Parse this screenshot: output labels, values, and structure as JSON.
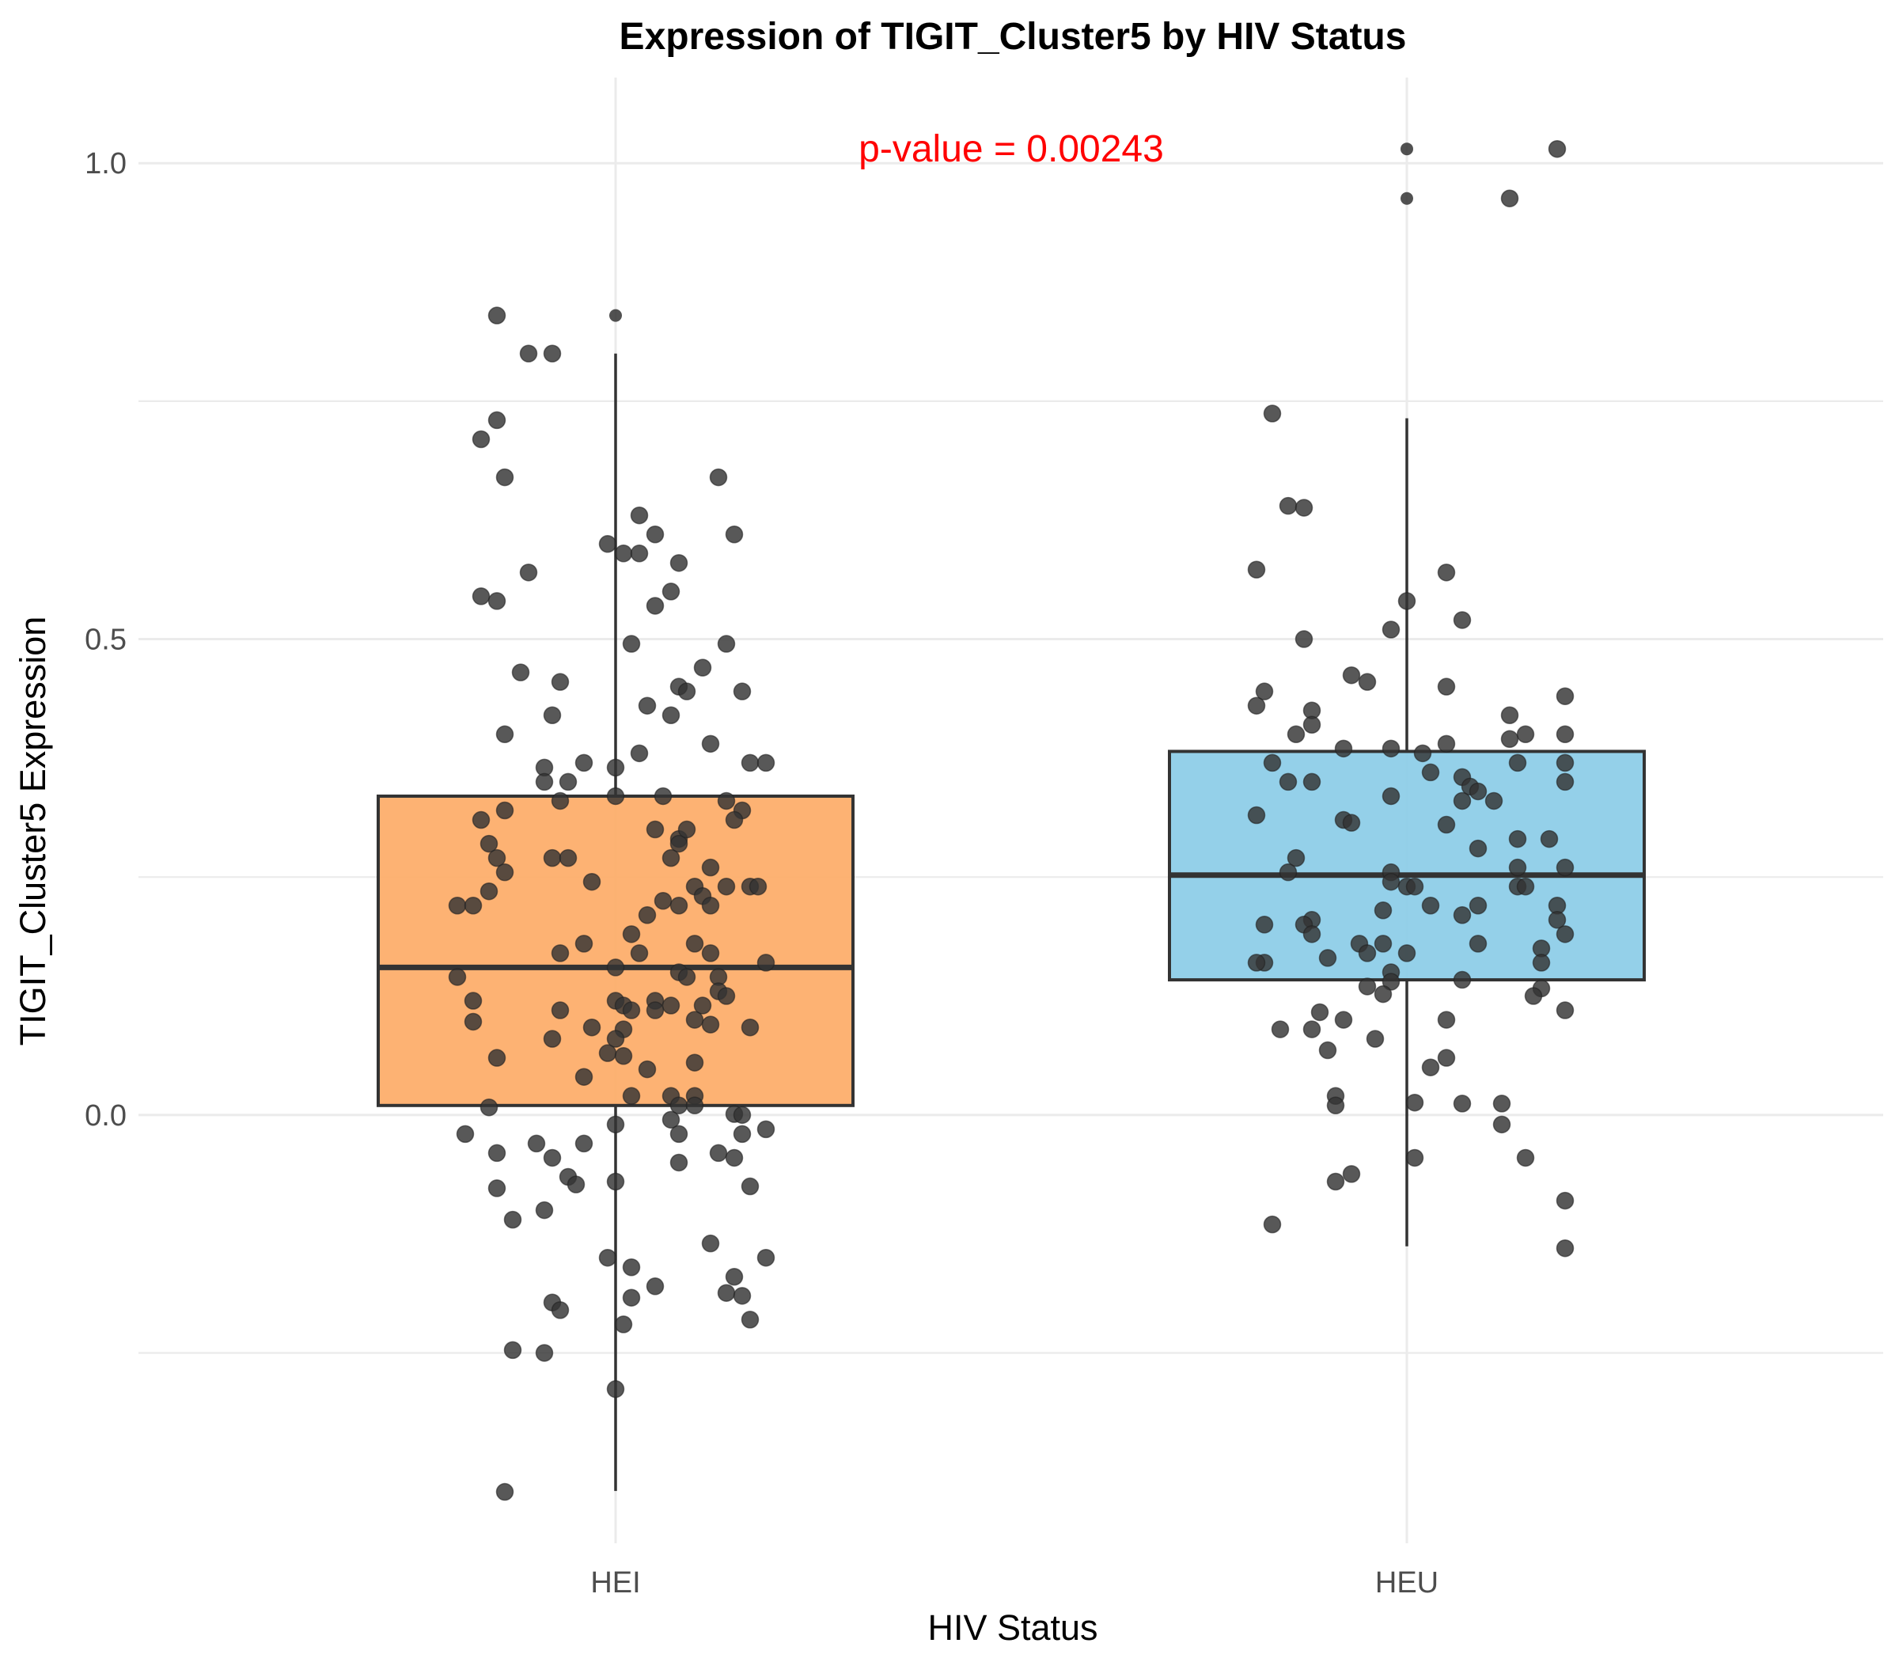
{
  "chart_data": {
    "type": "box",
    "title": "Expression of TIGIT_Cluster5 by HIV Status",
    "xlabel": "HIV Status",
    "ylabel": "TIGIT_Cluster5 Expression",
    "categories": [
      "HEI",
      "HEU"
    ],
    "yticks": [
      "0.0",
      "0.5",
      "1.0"
    ],
    "ylim": [
      -0.45,
      1.09
    ],
    "grid": true,
    "legend": "none",
    "annotation": {
      "text": "p-value = 0.00243",
      "color": "#ff0000"
    },
    "colors": {
      "HEI": "#fdae6b",
      "HEU": "#8ecde8",
      "points": "#333333"
    },
    "boxes": [
      {
        "group": "HEI",
        "min": -0.395,
        "q1": 0.01,
        "median": 0.155,
        "q3": 0.335,
        "max": 0.8,
        "outliers": [
          0.84
        ]
      },
      {
        "group": "HEU",
        "min": -0.138,
        "q1": 0.142,
        "median": 0.252,
        "q3": 0.382,
        "max": 0.732,
        "outliers": [
          1.015,
          0.963
        ]
      }
    ],
    "points": {
      "HEI": [
        [
          -0.15,
          0.84
        ],
        [
          -0.11,
          0.8
        ],
        [
          -0.08,
          0.8
        ],
        [
          -0.15,
          0.73
        ],
        [
          -0.17,
          0.71
        ],
        [
          -0.14,
          0.67
        ],
        [
          0.13,
          0.67
        ],
        [
          0.03,
          0.63
        ],
        [
          0.05,
          0.61
        ],
        [
          -0.01,
          0.6
        ],
        [
          0.15,
          0.61
        ],
        [
          0.01,
          0.59
        ],
        [
          0.03,
          0.59
        ],
        [
          0.08,
          0.58
        ],
        [
          -0.11,
          0.57
        ],
        [
          -0.17,
          0.545
        ],
        [
          -0.15,
          0.54
        ],
        [
          0.07,
          0.55
        ],
        [
          0.05,
          0.535
        ],
        [
          0.14,
          0.495
        ],
        [
          0.02,
          0.495
        ],
        [
          -0.12,
          0.465
        ],
        [
          0.11,
          0.47
        ],
        [
          -0.07,
          0.455
        ],
        [
          0.08,
          0.45
        ],
        [
          0.09,
          0.445
        ],
        [
          0.16,
          0.445
        ],
        [
          0.04,
          0.43
        ],
        [
          0.07,
          0.42
        ],
        [
          -0.08,
          0.42
        ],
        [
          -0.14,
          0.4
        ],
        [
          0.12,
          0.39
        ],
        [
          0.03,
          0.38
        ],
        [
          -0.04,
          0.37
        ],
        [
          -0.09,
          0.365
        ],
        [
          -0.06,
          0.35
        ],
        [
          -0.09,
          0.35
        ],
        [
          0.0,
          0.365
        ],
        [
          0.17,
          0.37
        ],
        [
          0.19,
          0.37
        ],
        [
          0.06,
          0.335
        ],
        [
          -0.07,
          0.33
        ],
        [
          0.0,
          0.335
        ],
        [
          0.14,
          0.33
        ],
        [
          -0.14,
          0.32
        ],
        [
          0.16,
          0.32
        ],
        [
          -0.17,
          0.31
        ],
        [
          0.15,
          0.31
        ],
        [
          -0.15,
          0.27
        ],
        [
          0.08,
          0.29
        ],
        [
          0.05,
          0.3
        ],
        [
          0.08,
          0.285
        ],
        [
          0.09,
          0.3
        ],
        [
          -0.16,
          0.285
        ],
        [
          -0.08,
          0.27
        ],
        [
          -0.06,
          0.27
        ],
        [
          0.07,
          0.27
        ],
        [
          0.12,
          0.26
        ],
        [
          -0.14,
          0.255
        ],
        [
          -0.16,
          0.235
        ],
        [
          -0.03,
          0.245
        ],
        [
          0.1,
          0.24
        ],
        [
          0.14,
          0.24
        ],
        [
          0.17,
          0.24
        ],
        [
          0.18,
          0.24
        ],
        [
          0.11,
          0.23
        ],
        [
          -0.2,
          0.22
        ],
        [
          -0.18,
          0.22
        ],
        [
          0.06,
          0.225
        ],
        [
          0.08,
          0.22
        ],
        [
          0.12,
          0.22
        ],
        [
          0.04,
          0.21
        ],
        [
          0.02,
          0.19
        ],
        [
          -0.04,
          0.18
        ],
        [
          0.1,
          0.18
        ],
        [
          0.12,
          0.17
        ],
        [
          0.03,
          0.17
        ],
        [
          -0.07,
          0.17
        ],
        [
          0.19,
          0.16
        ],
        [
          0.0,
          0.155
        ],
        [
          0.08,
          0.15
        ],
        [
          0.09,
          0.145
        ],
        [
          -0.2,
          0.145
        ],
        [
          0.13,
          0.145
        ],
        [
          0.13,
          0.13
        ],
        [
          0.14,
          0.125
        ],
        [
          0.05,
          0.12
        ],
        [
          0.0,
          0.12
        ],
        [
          0.01,
          0.115
        ],
        [
          0.02,
          0.11
        ],
        [
          0.07,
          0.115
        ],
        [
          0.11,
          0.115
        ],
        [
          -0.18,
          0.12
        ],
        [
          -0.07,
          0.11
        ],
        [
          0.05,
          0.11
        ],
        [
          -0.18,
          0.098
        ],
        [
          0.1,
          0.1
        ],
        [
          0.12,
          0.095
        ],
        [
          0.17,
          0.092
        ],
        [
          -0.03,
          0.092
        ],
        [
          0.01,
          0.09
        ],
        [
          0.0,
          0.08
        ],
        [
          -0.08,
          0.08
        ],
        [
          -0.01,
          0.065
        ],
        [
          0.01,
          0.062
        ],
        [
          -0.15,
          0.06
        ],
        [
          0.1,
          0.055
        ],
        [
          0.04,
          0.048
        ],
        [
          -0.04,
          0.04
        ],
        [
          0.02,
          0.02
        ],
        [
          0.07,
          0.02
        ],
        [
          0.1,
          0.02
        ],
        [
          0.08,
          0.01
        ],
        [
          0.1,
          0.01
        ],
        [
          -0.16,
          0.008
        ],
        [
          0.15,
          0.001
        ],
        [
          0.16,
          0.0
        ],
        [
          0.07,
          -0.005
        ],
        [
          0.0,
          -0.01
        ],
        [
          0.19,
          -0.015
        ],
        [
          0.16,
          -0.02
        ],
        [
          -0.19,
          -0.02
        ],
        [
          -0.1,
          -0.03
        ],
        [
          -0.04,
          -0.03
        ],
        [
          0.08,
          -0.02
        ],
        [
          -0.15,
          -0.04
        ],
        [
          -0.08,
          -0.045
        ],
        [
          0.13,
          -0.04
        ],
        [
          0.15,
          -0.045
        ],
        [
          0.08,
          -0.05
        ],
        [
          -0.06,
          -0.065
        ],
        [
          0.0,
          -0.07
        ],
        [
          -0.05,
          -0.073
        ],
        [
          -0.15,
          -0.077
        ],
        [
          0.17,
          -0.075
        ],
        [
          -0.09,
          -0.1
        ],
        [
          -0.13,
          -0.11
        ],
        [
          0.12,
          -0.135
        ],
        [
          -0.01,
          -0.15
        ],
        [
          0.02,
          -0.16
        ],
        [
          0.19,
          -0.15
        ],
        [
          0.15,
          -0.17
        ],
        [
          0.05,
          -0.18
        ],
        [
          0.14,
          -0.187
        ],
        [
          0.02,
          -0.192
        ],
        [
          0.16,
          -0.19
        ],
        [
          -0.08,
          -0.197
        ],
        [
          -0.07,
          -0.205
        ],
        [
          0.17,
          -0.215
        ],
        [
          0.01,
          -0.22
        ],
        [
          -0.13,
          -0.247
        ],
        [
          -0.09,
          -0.25
        ],
        [
          0.0,
          -0.288
        ],
        [
          -0.14,
          -0.396
        ]
      ],
      "HEU": [
        [
          0.19,
          1.015
        ],
        [
          0.13,
          0.963
        ],
        [
          -0.17,
          0.737
        ],
        [
          -0.15,
          0.64
        ],
        [
          -0.13,
          0.638
        ],
        [
          -0.19,
          0.573
        ],
        [
          0.05,
          0.57
        ],
        [
          0.0,
          0.54
        ],
        [
          0.07,
          0.52
        ],
        [
          -0.13,
          0.5
        ],
        [
          -0.02,
          0.51
        ],
        [
          -0.07,
          0.462
        ],
        [
          -0.05,
          0.455
        ],
        [
          0.05,
          0.45
        ],
        [
          -0.18,
          0.445
        ],
        [
          -0.19,
          0.43
        ],
        [
          0.2,
          0.44
        ],
        [
          -0.12,
          0.425
        ],
        [
          0.13,
          0.42
        ],
        [
          -0.12,
          0.41
        ],
        [
          -0.14,
          0.4
        ],
        [
          0.15,
          0.4
        ],
        [
          0.13,
          0.395
        ],
        [
          0.2,
          0.4
        ],
        [
          0.05,
          0.39
        ],
        [
          -0.08,
          0.385
        ],
        [
          -0.02,
          0.385
        ],
        [
          0.02,
          0.38
        ],
        [
          -0.17,
          0.37
        ],
        [
          0.14,
          0.37
        ],
        [
          0.2,
          0.37
        ],
        [
          0.03,
          0.36
        ],
        [
          0.07,
          0.355
        ],
        [
          0.2,
          0.35
        ],
        [
          -0.12,
          0.35
        ],
        [
          -0.15,
          0.35
        ],
        [
          0.08,
          0.345
        ],
        [
          0.09,
          0.34
        ],
        [
          0.07,
          0.33
        ],
        [
          0.11,
          0.33
        ],
        [
          -0.02,
          0.335
        ],
        [
          -0.19,
          0.315
        ],
        [
          -0.08,
          0.31
        ],
        [
          -0.07,
          0.307
        ],
        [
          0.05,
          0.305
        ],
        [
          0.14,
          0.29
        ],
        [
          0.18,
          0.29
        ],
        [
          0.09,
          0.28
        ],
        [
          -0.14,
          0.27
        ],
        [
          -0.15,
          0.255
        ],
        [
          -0.02,
          0.255
        ],
        [
          0.2,
          0.26
        ],
        [
          0.14,
          0.26
        ],
        [
          0.14,
          0.24
        ],
        [
          -0.02,
          0.245
        ],
        [
          -0.0,
          0.24
        ],
        [
          0.01,
          0.24
        ],
        [
          0.15,
          0.24
        ],
        [
          0.09,
          0.22
        ],
        [
          0.03,
          0.22
        ],
        [
          0.19,
          0.22
        ],
        [
          -0.03,
          0.215
        ],
        [
          0.07,
          0.21
        ],
        [
          0.19,
          0.205
        ],
        [
          -0.12,
          0.205
        ],
        [
          -0.13,
          0.2
        ],
        [
          -0.18,
          0.2
        ],
        [
          -0.12,
          0.19
        ],
        [
          0.2,
          0.19
        ],
        [
          -0.03,
          0.18
        ],
        [
          0.09,
          0.18
        ],
        [
          -0.06,
          0.18
        ],
        [
          0.17,
          0.175
        ],
        [
          -0.05,
          0.17
        ],
        [
          0.0,
          0.17
        ],
        [
          -0.1,
          0.165
        ],
        [
          0.17,
          0.16
        ],
        [
          -0.18,
          0.16
        ],
        [
          -0.19,
          0.16
        ],
        [
          -0.02,
          0.15
        ],
        [
          -0.02,
          0.14
        ],
        [
          0.07,
          0.142
        ],
        [
          -0.05,
          0.135
        ],
        [
          0.17,
          0.133
        ],
        [
          0.16,
          0.125
        ],
        [
          -0.03,
          0.127
        ],
        [
          0.2,
          0.11
        ],
        [
          -0.11,
          0.108
        ],
        [
          0.05,
          0.1
        ],
        [
          -0.08,
          0.1
        ],
        [
          -0.16,
          0.09
        ],
        [
          -0.12,
          0.09
        ],
        [
          -0.04,
          0.08
        ],
        [
          -0.1,
          0.068
        ],
        [
          0.05,
          0.06
        ],
        [
          0.03,
          0.05
        ],
        [
          -0.09,
          0.02
        ],
        [
          -0.09,
          0.01
        ],
        [
          0.01,
          0.013
        ],
        [
          0.07,
          0.012
        ],
        [
          0.12,
          0.012
        ],
        [
          0.12,
          -0.01
        ],
        [
          0.01,
          -0.045
        ],
        [
          0.15,
          -0.045
        ],
        [
          -0.07,
          -0.062
        ],
        [
          -0.09,
          -0.07
        ],
        [
          0.2,
          -0.09
        ],
        [
          -0.17,
          -0.115
        ],
        [
          0.2,
          -0.14
        ]
      ]
    }
  }
}
